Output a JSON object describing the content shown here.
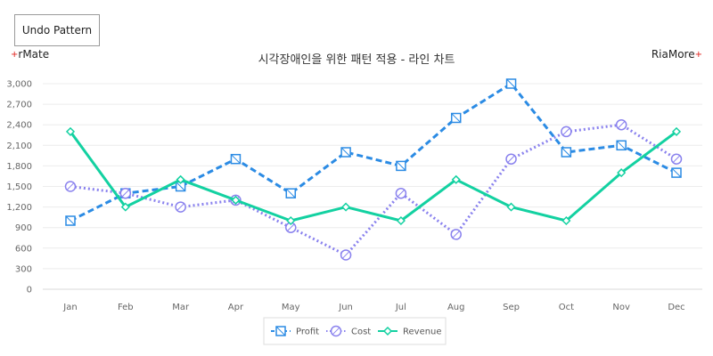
{
  "toolbar": {
    "undo_label": "Undo Pattern"
  },
  "brand": {
    "left_plus": "+",
    "left_text": "rMate",
    "right_text": "RiaMore",
    "right_plus": "+"
  },
  "chart_data": {
    "type": "line",
    "title": "시각장애인을 위한 패턴 적용 - 라인 차트",
    "xlabel": "",
    "ylabel": "",
    "categories": [
      "Jan",
      "Feb",
      "Mar",
      "Apr",
      "May",
      "Jun",
      "Jul",
      "Aug",
      "Sep",
      "Oct",
      "Nov",
      "Dec"
    ],
    "ylim": [
      0,
      3000
    ],
    "yticks": [
      0,
      300,
      600,
      900,
      1200,
      1500,
      1800,
      2100,
      2400,
      2700,
      3000
    ],
    "ytick_labels": [
      "0",
      "300",
      "600",
      "900",
      "1,200",
      "1,500",
      "1,800",
      "2,100",
      "2,400",
      "2,700",
      "3,000"
    ],
    "grid": true,
    "legend_position": "bottom",
    "series": [
      {
        "name": "Profit",
        "values": [
          1000,
          1400,
          1500,
          1900,
          1400,
          2000,
          1800,
          2500,
          3000,
          2000,
          2100,
          1700
        ],
        "color": "#2b8be4",
        "line_style": "dashed",
        "marker": "square-slash"
      },
      {
        "name": "Cost",
        "values": [
          1500,
          1400,
          1200,
          1300,
          900,
          500,
          1400,
          800,
          1900,
          2300,
          2400,
          1900
        ],
        "color": "#8a82ee",
        "line_style": "dotted",
        "marker": "circle-slash"
      },
      {
        "name": "Revenue",
        "values": [
          2300,
          1200,
          1600,
          1300,
          1000,
          1200,
          1000,
          1600,
          1200,
          1000,
          1700,
          2300
        ],
        "color": "#13d1a1",
        "line_style": "solid",
        "marker": "diamond"
      }
    ]
  }
}
